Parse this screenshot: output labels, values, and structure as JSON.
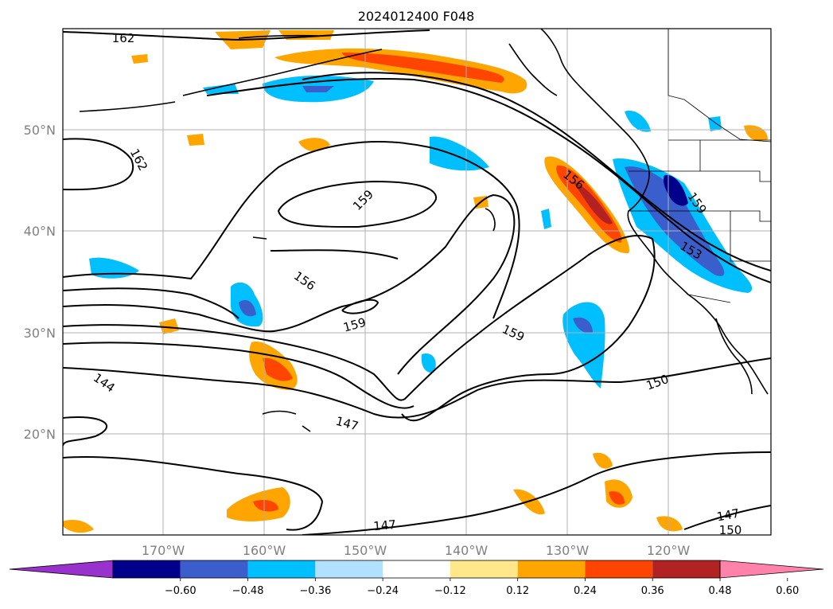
{
  "title": "2024012400 F048",
  "lat_labels": [
    "50°N",
    "40°N",
    "30°N",
    "20°N"
  ],
  "lon_labels": [
    "170°W",
    "160°W",
    "150°W",
    "140°W",
    "130°W",
    "120°W"
  ],
  "contour_labels": [
    "162",
    "162",
    "159",
    "159",
    "159",
    "156",
    "156",
    "153",
    "159",
    "150",
    "144",
    "147",
    "147",
    "147",
    "150"
  ],
  "colorbar": {
    "ticks": [
      "−0.60",
      "−0.48",
      "−0.36",
      "−0.24",
      "−0.12",
      "0.12",
      "0.24",
      "0.36",
      "0.48",
      "0.60"
    ],
    "colors": [
      "#9932cc",
      "#00008b",
      "#3a5fcd",
      "#00bfff",
      "#b0e2ff",
      "#ffffff",
      "#ffe78a",
      "#ffa500",
      "#ff4500",
      "#b22222",
      "#ff82ab"
    ]
  }
}
